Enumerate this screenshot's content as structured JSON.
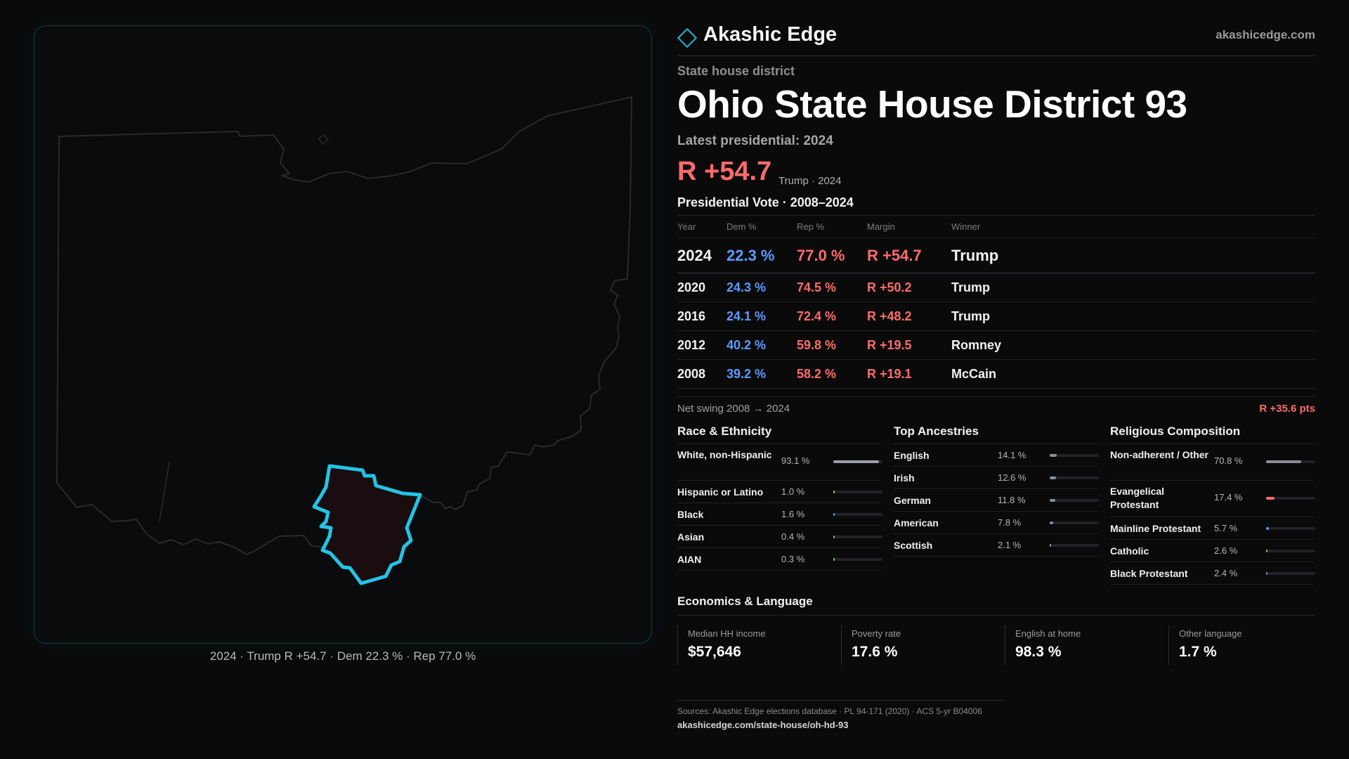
{
  "brand": {
    "name": "Akashic Edge",
    "url": "akashicedge.com"
  },
  "header": {
    "kicker": "State house district",
    "title": "Ohio State House District 93",
    "latest": "Latest presidential: 2024",
    "margin": "R +54.7",
    "margin_sub": "Trump · 2024"
  },
  "map": {
    "caption": "2024 · Trump R +54.7 · Dem 22.3 % · Rep 77.0 %",
    "outline_color": "#2a2a2d",
    "district_fill": "#1a0d0f",
    "district_stroke": "#22c4e6"
  },
  "votes": {
    "title": "Presidential Vote · 2008–2024",
    "headers": [
      "Year",
      "Dem %",
      "Rep %",
      "Margin",
      "Winner"
    ],
    "rows": [
      {
        "year": "2024",
        "dem": "22.3 %",
        "rep": "77.0 %",
        "margin": "R +54.7",
        "winner": "Trump"
      },
      {
        "year": "2020",
        "dem": "24.3 %",
        "rep": "74.5 %",
        "margin": "R +50.2",
        "winner": "Trump"
      },
      {
        "year": "2016",
        "dem": "24.1 %",
        "rep": "72.4 %",
        "margin": "R +48.2",
        "winner": "Trump"
      },
      {
        "year": "2012",
        "dem": "40.2 %",
        "rep": "59.8 %",
        "margin": "R +19.5",
        "winner": "Romney"
      },
      {
        "year": "2008",
        "dem": "39.2 %",
        "rep": "58.2 %",
        "margin": "R +19.1",
        "winner": "McCain"
      }
    ],
    "swing_label": "Net swing 2008 → 2024",
    "swing_value": "R +35.6 pts"
  },
  "race": {
    "title": "Race & Ethnicity",
    "items": [
      {
        "label": "White, non-Hispanic",
        "value": "93.1 %",
        "pct": 93.1,
        "color": "#9aa0a8"
      },
      {
        "label": "Hispanic or Latino",
        "value": "1.0 %",
        "pct": 1.0,
        "color": "#e0a030"
      },
      {
        "label": "Black",
        "value": "1.6 %",
        "pct": 1.6,
        "color": "#5b9dff"
      },
      {
        "label": "Asian",
        "value": "0.4 %",
        "pct": 0.4,
        "color": "#ff6b6b"
      },
      {
        "label": "AIAN",
        "value": "0.3 %",
        "pct": 0.3,
        "color": "#7acb7a"
      }
    ]
  },
  "ancestry": {
    "title": "Top Ancestries",
    "items": [
      {
        "label": "English",
        "value": "14.1 %",
        "pct": 14.1,
        "color": "#8a8f96"
      },
      {
        "label": "Irish",
        "value": "12.6 %",
        "pct": 12.6,
        "color": "#8a8f96"
      },
      {
        "label": "German",
        "value": "11.8 %",
        "pct": 11.8,
        "color": "#8a8f96"
      },
      {
        "label": "American",
        "value": "7.8 %",
        "pct": 7.8,
        "color": "#8a8f96"
      },
      {
        "label": "Scottish",
        "value": "2.1 %",
        "pct": 2.1,
        "color": "#8a8f96"
      }
    ]
  },
  "religion": {
    "title": "Religious Composition",
    "items": [
      {
        "label": "Non-adherent / Other",
        "value": "70.8 %",
        "pct": 70.8,
        "color": "#8a8f96"
      },
      {
        "label": "Evangelical Protestant",
        "value": "17.4 %",
        "pct": 17.4,
        "color": "#ff6b6b"
      },
      {
        "label": "Mainline Protestant",
        "value": "5.7 %",
        "pct": 5.7,
        "color": "#5b9dff"
      },
      {
        "label": "Catholic",
        "value": "2.6 %",
        "pct": 2.6,
        "color": "#e0a030"
      },
      {
        "label": "Black Protestant",
        "value": "2.4 %",
        "pct": 2.4,
        "color": "#a070e0"
      }
    ]
  },
  "economics": {
    "title": "Economics & Language",
    "items": [
      {
        "label": "Median HH income",
        "value": "$57,646"
      },
      {
        "label": "Poverty rate",
        "value": "17.6 %"
      },
      {
        "label": "English at home",
        "value": "98.3 %"
      },
      {
        "label": "Other language",
        "value": "1.7 %"
      }
    ]
  },
  "footer": {
    "sources": "Sources: Akashic Edge elections database · PL 94-171 (2020) · ACS 5-yr B04006",
    "link": "akashicedge.com/state-house/oh-hd-93"
  }
}
